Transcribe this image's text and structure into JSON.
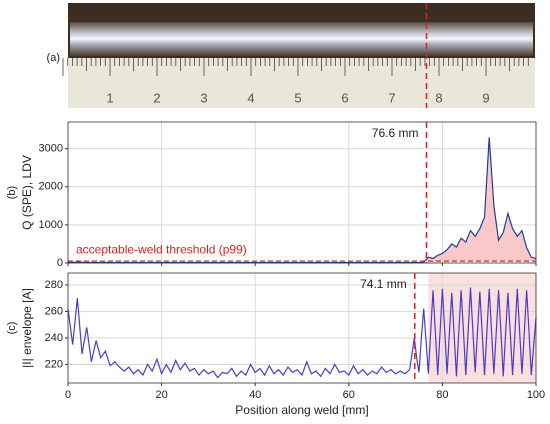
{
  "photo": {
    "label": "(a)",
    "ruler_labels": [
      "1",
      "2",
      "3",
      "4",
      "5",
      "6",
      "7",
      "8",
      "9"
    ]
  },
  "chart_data": [
    {
      "type": "line",
      "panel_label": "(b)",
      "ylabel": "Q (SPE), LDV",
      "xlim": [
        0,
        100
      ],
      "xticks": [
        0,
        20,
        40,
        60,
        80,
        100
      ],
      "ylim": [
        0,
        3700
      ],
      "yticks": [
        0,
        1000,
        2000,
        3000
      ],
      "grid": true,
      "threshold": {
        "value": 50,
        "label": "acceptable-weld threshold (p99)",
        "color": "#e02020"
      },
      "vline": {
        "x": 76.6,
        "label": "76.6 mm",
        "color": "#e02020"
      },
      "shaded_region": [
        76.6,
        100
      ],
      "shade_color": "#f9c9c9",
      "series": [
        {
          "name": "Q (SPE)",
          "color": "#1f3c9c",
          "x": [
            0,
            1,
            2,
            3,
            4,
            5,
            6,
            7,
            8,
            9,
            10,
            11,
            12,
            13,
            14,
            15,
            16,
            17,
            18,
            19,
            20,
            21,
            22,
            23,
            24,
            25,
            26,
            27,
            28,
            29,
            30,
            31,
            32,
            33,
            34,
            35,
            36,
            37,
            38,
            39,
            40,
            41,
            42,
            43,
            44,
            45,
            46,
            47,
            48,
            49,
            50,
            51,
            52,
            53,
            54,
            55,
            56,
            57,
            58,
            59,
            60,
            61,
            62,
            63,
            64,
            65,
            66,
            67,
            68,
            69,
            70,
            71,
            72,
            73,
            74,
            75,
            76,
            77,
            78,
            79,
            80,
            81,
            82,
            83,
            84,
            85,
            86,
            87,
            88,
            89,
            90,
            91,
            92,
            93,
            94,
            95,
            96,
            97,
            98,
            99,
            100
          ],
          "values": [
            20,
            15,
            25,
            18,
            12,
            15,
            10,
            12,
            14,
            10,
            12,
            11,
            10,
            12,
            10,
            11,
            10,
            12,
            11,
            10,
            12,
            10,
            11,
            10,
            12,
            11,
            10,
            12,
            10,
            11,
            10,
            12,
            10,
            11,
            10,
            12,
            11,
            10,
            12,
            10,
            11,
            10,
            12,
            11,
            10,
            12,
            10,
            11,
            10,
            12,
            11,
            10,
            12,
            10,
            11,
            10,
            12,
            11,
            10,
            12,
            10,
            11,
            10,
            12,
            11,
            10,
            12,
            10,
            11,
            10,
            12,
            11,
            10,
            12,
            15,
            12,
            20,
            150,
            120,
            200,
            250,
            350,
            500,
            420,
            650,
            550,
            850,
            700,
            900,
            1200,
            3300,
            1500,
            600,
            800,
            1300,
            900,
            700,
            850,
            400,
            150,
            120
          ]
        }
      ]
    },
    {
      "type": "line",
      "panel_label": "(c)",
      "ylabel": "|I| envelope [A]",
      "xlabel": "Position along weld [mm]",
      "xlim": [
        0,
        100
      ],
      "xticks": [
        0,
        20,
        40,
        60,
        80,
        100
      ],
      "ylim": [
        206,
        289
      ],
      "yticks": [
        220,
        240,
        260,
        280
      ],
      "grid": true,
      "vline": {
        "x": 74.1,
        "label": "74.1 mm",
        "color": "#e02020"
      },
      "shaded_region": [
        77,
        100
      ],
      "shade_color": "#fbdede",
      "series": [
        {
          "name": "|I| envelope",
          "color": "#4b3cc8",
          "x": [
            0,
            1,
            2,
            3,
            4,
            5,
            6,
            7,
            8,
            9,
            10,
            11,
            12,
            13,
            14,
            15,
            16,
            17,
            18,
            19,
            20,
            21,
            22,
            23,
            24,
            25,
            26,
            27,
            28,
            29,
            30,
            31,
            32,
            33,
            34,
            35,
            36,
            37,
            38,
            39,
            40,
            41,
            42,
            43,
            44,
            45,
            46,
            47,
            48,
            49,
            50,
            51,
            52,
            53,
            54,
            55,
            56,
            57,
            58,
            59,
            60,
            61,
            62,
            63,
            64,
            65,
            66,
            67,
            68,
            69,
            70,
            71,
            72,
            73,
            74,
            74.5,
            75,
            75.5,
            76,
            76.5,
            77,
            77.5,
            78,
            78.5,
            79,
            79.5,
            80,
            80.5,
            81,
            81.5,
            82,
            82.5,
            83,
            83.5,
            84,
            84.5,
            85,
            85.5,
            86,
            86.5,
            87,
            87.5,
            88,
            88.5,
            89,
            89.5,
            90,
            90.5,
            91,
            91.5,
            92,
            92.5,
            93,
            93.5,
            94,
            94.5,
            95,
            95.5,
            96,
            96.5,
            97,
            97.5,
            98,
            98.5,
            99,
            99.5,
            100
          ],
          "values": [
            262,
            235,
            270,
            228,
            248,
            222,
            238,
            225,
            230,
            219,
            222,
            218,
            215,
            218,
            213,
            216,
            212,
            220,
            215,
            224,
            213,
            220,
            214,
            223,
            216,
            221,
            215,
            217,
            212,
            216,
            213,
            215,
            210,
            214,
            213,
            217,
            211,
            215,
            212,
            220,
            214,
            217,
            212,
            219,
            213,
            216,
            212,
            218,
            214,
            216,
            212,
            222,
            213,
            215,
            211,
            217,
            213,
            220,
            214,
            215,
            212,
            219,
            213,
            216,
            212,
            215,
            213,
            218,
            214,
            216,
            213,
            215,
            213,
            216,
            240,
            225,
            214,
            240,
            262,
            238,
            213,
            245,
            276,
            244,
            212,
            244,
            277,
            245,
            213,
            244,
            274,
            243,
            211,
            244,
            276,
            245,
            212,
            245,
            278,
            246,
            214,
            245,
            275,
            244,
            212,
            244,
            277,
            245,
            213,
            244,
            276,
            245,
            211,
            243,
            274,
            244,
            212,
            244,
            277,
            245,
            213,
            244,
            276,
            245,
            212,
            234,
            255
          ]
        }
      ]
    }
  ]
}
